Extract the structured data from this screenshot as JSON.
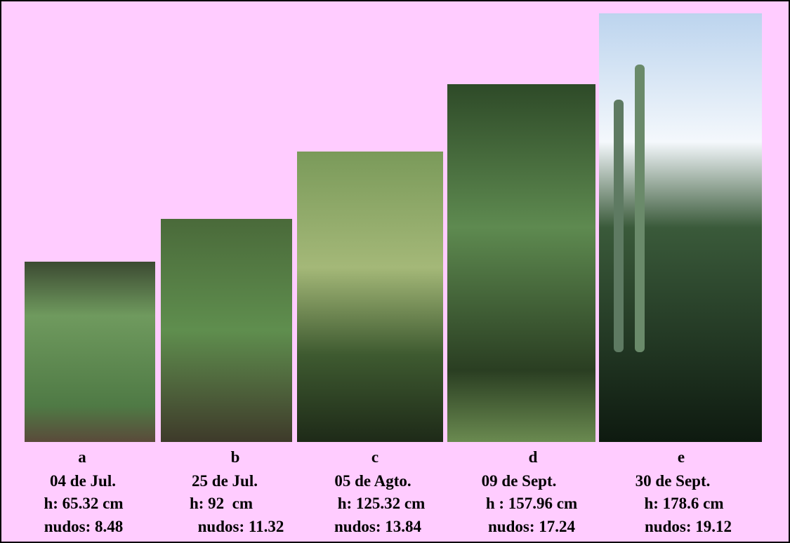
{
  "panels": [
    {
      "label": "a",
      "date": "04 de Jul.",
      "height": "h: 65.32 cm",
      "nodes": "nudos: 8.48"
    },
    {
      "label": "b",
      "date": "25 de Jul.",
      "height": "h: 92  cm",
      "nodes": "nudos: 11.32"
    },
    {
      "label": "c",
      "date": "05 de Agto.",
      "height": "h: 125.32 cm",
      "nodes": "nudos: 13.84"
    },
    {
      "label": "d",
      "date": "09 de Sept.",
      "height": "h : 157.96 cm",
      "nodes": "nudos: 17.24"
    },
    {
      "label": "e",
      "date": "30 de Sept.",
      "height": "h: 178.6 cm",
      "nodes": "nudos: 19.12"
    }
  ]
}
